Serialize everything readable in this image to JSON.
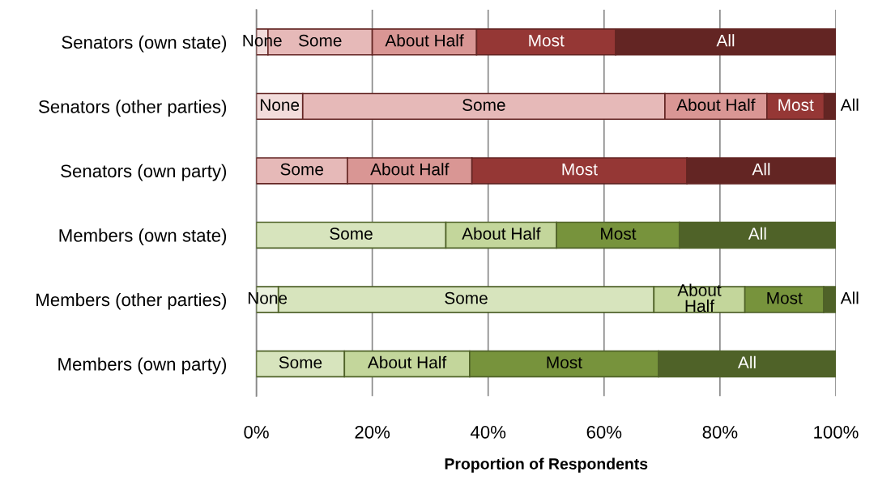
{
  "chart_data": {
    "type": "bar",
    "orientation": "horizontal",
    "stacked": true,
    "xlabel": "Proportion of Respondents",
    "categories": [
      "Senators (own state)",
      "Senators (other parties)",
      "Senators (own party)",
      "Members (own state)",
      "Members (other parties)",
      "Members (own party)"
    ],
    "series": [
      {
        "colors": [
          "#f2dcdb",
          "#f2dcdb",
          "#f2dcdb",
          "#ebf1de",
          "#ebf1de",
          "#ebf1de"
        ],
        "values": [
          2,
          8,
          0,
          0,
          3.8,
          0
        ],
        "value_labels": [
          "None",
          "None",
          null,
          null,
          "None",
          null
        ]
      },
      {
        "colors": [
          "#e6b9b8",
          "#e6b9b8",
          "#e6b9b8",
          "#d7e4bd",
          "#d7e4bd",
          "#d7e4bd"
        ],
        "values": [
          18,
          62.5,
          15.7,
          32.7,
          64.8,
          15.2
        ],
        "value_labels": [
          "Some",
          "Some",
          "Some",
          "Some",
          "Some",
          "Some"
        ]
      },
      {
        "colors": [
          "#d99694",
          "#d99694",
          "#d99694",
          "#c3d69b",
          "#c3d69b",
          "#c3d69b"
        ],
        "values": [
          18,
          17.6,
          21.5,
          19.1,
          15.7,
          21.6
        ],
        "value_labels": [
          "About Half",
          "About Half",
          "About Half",
          "About Half",
          "About\nHalf",
          "About Half"
        ]
      },
      {
        "colors": [
          "#953735",
          "#953735",
          "#953735",
          "#77933c",
          "#77933c",
          "#77933c"
        ],
        "values": [
          24,
          9.9,
          37.1,
          21.2,
          13.6,
          32.6
        ],
        "value_labels": [
          "Most",
          "Most",
          "Most",
          "Most",
          "Most",
          "Most"
        ]
      },
      {
        "colors": [
          "#632523",
          "#632523",
          "#632523",
          "#4f6228",
          "#4f6228",
          "#4f6228"
        ],
        "values": [
          38,
          2,
          25.7,
          27,
          2.1,
          30.6
        ],
        "value_labels": [
          "All",
          "All",
          "All",
          "All",
          "All",
          "All"
        ]
      }
    ],
    "xlim": [
      0,
      100
    ],
    "xticks": [
      {
        "value": 0,
        "label": "0%"
      },
      {
        "value": 20,
        "label": "20%"
      },
      {
        "value": 40,
        "label": "40%"
      },
      {
        "value": 60,
        "label": "60%"
      },
      {
        "value": 80,
        "label": "80%"
      },
      {
        "value": 100,
        "label": "100%"
      }
    ],
    "grid": "x",
    "legend": false
  }
}
